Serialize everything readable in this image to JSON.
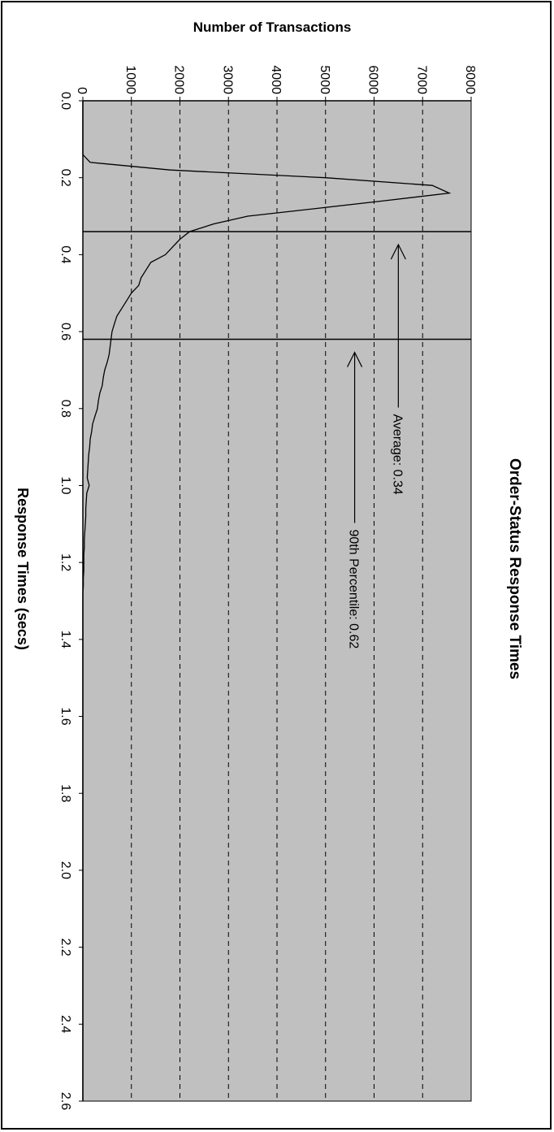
{
  "chart_data": {
    "type": "line",
    "title": "Order-Status Response Times",
    "xlabel": "Response Times (secs)",
    "ylabel": "Number of Transactions",
    "xlim": [
      0,
      2.6
    ],
    "ylim": [
      0,
      8000
    ],
    "x_ticks": [
      "0.0",
      "0.2",
      "0.4",
      "0.6",
      "0.8",
      "1.0",
      "1.2",
      "1.4",
      "1.6",
      "1.8",
      "2.0",
      "2.2",
      "2.4",
      "2.6"
    ],
    "y_ticks": [
      "0",
      "1000",
      "2000",
      "3000",
      "4000",
      "5000",
      "6000",
      "7000",
      "8000"
    ],
    "grid": "horizontal dashed",
    "plot_background": "#c0c0c0",
    "line_color": "#000000",
    "series": [
      {
        "x": [
          0.0,
          0.02,
          0.04,
          0.06,
          0.08,
          0.1,
          0.12,
          0.14,
          0.16,
          0.18,
          0.2,
          0.22,
          0.24,
          0.26,
          0.28,
          0.3,
          0.32,
          0.34,
          0.36,
          0.38,
          0.4,
          0.42,
          0.44,
          0.46,
          0.48,
          0.5,
          0.52,
          0.54,
          0.56,
          0.58,
          0.6,
          0.62,
          0.64,
          0.66,
          0.68,
          0.7,
          0.72,
          0.74,
          0.76,
          0.78,
          0.8,
          0.82,
          0.84,
          0.86,
          0.88,
          0.9,
          0.92,
          0.94,
          0.96,
          0.98,
          1.0,
          1.02,
          1.04,
          1.06,
          1.08,
          1.1,
          1.12,
          1.14,
          1.16,
          1.18,
          1.2,
          1.22,
          1.24,
          1.26,
          1.28,
          1.3,
          1.4,
          1.6,
          1.8,
          2.0,
          2.2,
          2.4,
          2.6
        ],
        "y": [
          0,
          0,
          0,
          0,
          0,
          0,
          0,
          0,
          150,
          1800,
          5000,
          7200,
          7550,
          6200,
          4800,
          3400,
          2700,
          2200,
          2000,
          1850,
          1700,
          1400,
          1300,
          1200,
          1150,
          1000,
          900,
          800,
          700,
          650,
          600,
          580,
          560,
          540,
          500,
          450,
          420,
          400,
          350,
          320,
          300,
          250,
          200,
          180,
          150,
          140,
          120,
          110,
          100,
          90,
          130,
          80,
          70,
          60,
          60,
          50,
          40,
          30,
          30,
          20,
          20,
          20,
          10,
          10,
          0,
          0,
          0,
          0,
          0,
          0,
          0,
          0,
          0
        ]
      }
    ],
    "reference_lines": [
      {
        "x": 0.34,
        "label": "Average: 0.34"
      },
      {
        "x": 0.62,
        "label": "90th Percentile: 0.62"
      }
    ]
  }
}
